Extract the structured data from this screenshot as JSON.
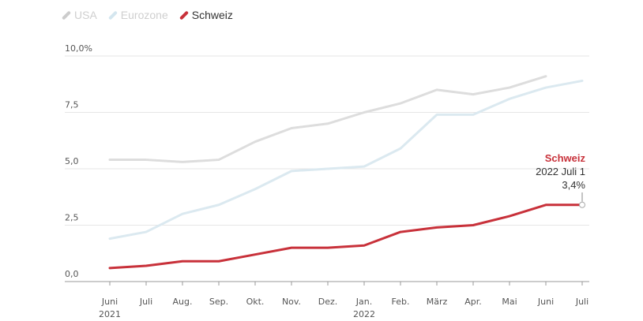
{
  "legend": [
    {
      "label": "USA",
      "color": "#cccccc",
      "active": false
    },
    {
      "label": "Eurozone",
      "color": "#d4e6ef",
      "active": false
    },
    {
      "label": "Schweiz",
      "color": "#c8313a",
      "active": true
    }
  ],
  "chart_data": {
    "type": "line",
    "categories": [
      "Juni",
      "Juli",
      "Aug.",
      "Sep.",
      "Okt.",
      "Nov.",
      "Dez.",
      "Jan.",
      "Feb.",
      "März",
      "Apr.",
      "Mai",
      "Juni",
      "Juli"
    ],
    "year_labels": {
      "0": "2021",
      "7": "2022"
    },
    "y_ticks": [
      "0,0",
      "2,5",
      "5,0",
      "7,5",
      "10,0%"
    ],
    "y_tick_values": [
      0,
      2.5,
      5,
      7.5,
      10
    ],
    "ylim": [
      0,
      10
    ],
    "grid": true,
    "series": [
      {
        "name": "USA",
        "color": "#dddddd",
        "values": [
          5.4,
          5.4,
          5.3,
          5.4,
          6.2,
          6.8,
          7.0,
          7.5,
          7.9,
          8.5,
          8.3,
          8.6,
          9.1,
          null
        ]
      },
      {
        "name": "Eurozone",
        "color": "#dbe9f0",
        "values": [
          1.9,
          2.2,
          3.0,
          3.4,
          4.1,
          4.9,
          5.0,
          5.1,
          5.9,
          7.4,
          7.4,
          8.1,
          8.6,
          8.9
        ]
      },
      {
        "name": "Schweiz",
        "color": "#c8313a",
        "values": [
          0.6,
          0.7,
          0.9,
          0.9,
          1.2,
          1.5,
          1.5,
          1.6,
          2.2,
          2.4,
          2.5,
          2.9,
          3.4,
          3.4
        ]
      }
    ],
    "annotation": {
      "series": "Schweiz",
      "date": "2022 Juli 1",
      "value": "3,4%",
      "index": 13
    }
  }
}
